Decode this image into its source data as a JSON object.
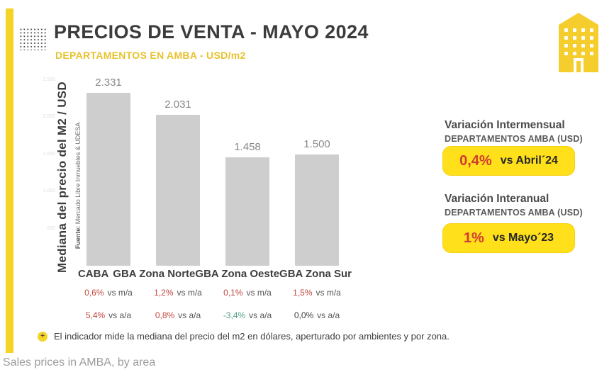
{
  "header": {
    "title": "PRECIOS DE VENTA - MAYO 2024",
    "subtitle": "DEPARTAMENTOS EN AMBA - USD/m2"
  },
  "colors": {
    "accent_yellow": "#F5D327",
    "pill_yellow": "#FFE01A",
    "positive_red": "#C3473E",
    "negative_green": "#4FA084",
    "neutral_dark": "#3D3D3D",
    "title_dark": "#3C3C3B",
    "bar_gray": "#CECECE"
  },
  "chart_data": {
    "type": "bar",
    "title": "DEPARTAMENTOS EN AMBA - USD/m2",
    "ylabel": "Mediana del precio del M2 / USD",
    "source_label": "Fuente:",
    "source_text": "Mercado Libre Inmuebles & UDESA",
    "ylim": [
      0,
      2500
    ],
    "ytick_labels": [
      "2.500",
      "2.000",
      "1.500",
      "1.000",
      "500"
    ],
    "grid": false,
    "legend": "none",
    "categories": [
      "CABA",
      "GBA Zona Norte",
      "GBA Zona Oeste",
      "GBA Zona Sur"
    ],
    "values": [
      2331,
      2031,
      1458,
      1500
    ],
    "value_labels": [
      "2.331",
      "2.031",
      "1.458",
      "1.500"
    ],
    "monthly_suffix": "vs m/a",
    "annual_suffix": "vs a/a",
    "zones": [
      {
        "label": "CABA",
        "value_label": "2.331",
        "monthly_pct": "0,6%",
        "monthly_tone": "red",
        "annual_pct": "5,4%",
        "annual_tone": "red"
      },
      {
        "label": "GBA Zona Norte",
        "value_label": "2.031",
        "monthly_pct": "1,2%",
        "monthly_tone": "red",
        "annual_pct": "0,8%",
        "annual_tone": "red"
      },
      {
        "label": "GBA Zona Oeste",
        "value_label": "1.458",
        "monthly_pct": "0,1%",
        "monthly_tone": "red",
        "annual_pct": "-3,4%",
        "annual_tone": "green"
      },
      {
        "label": "GBA Zona Sur",
        "value_label": "1.500",
        "monthly_pct": "1,5%",
        "monthly_tone": "red",
        "annual_pct": "0,0%",
        "annual_tone": "dark"
      }
    ]
  },
  "side_panel": {
    "intermensual": {
      "heading": "Variación Intermensual",
      "subheading": "DEPARTAMENTOS AMBA (USD)",
      "pct": "0,4%",
      "vs": "vs Abril´24"
    },
    "interanual": {
      "heading": "Variación Interanual",
      "subheading": "DEPARTAMENTOS AMBA (USD)",
      "pct": "1%",
      "vs": "vs Mayo´23"
    }
  },
  "footnote": {
    "icon": "+",
    "text": "El indicador mide la mediana del precio del m2 en dólares, aperturado por ambientes y por zona."
  },
  "caption": "Sales prices in AMBA, by area"
}
